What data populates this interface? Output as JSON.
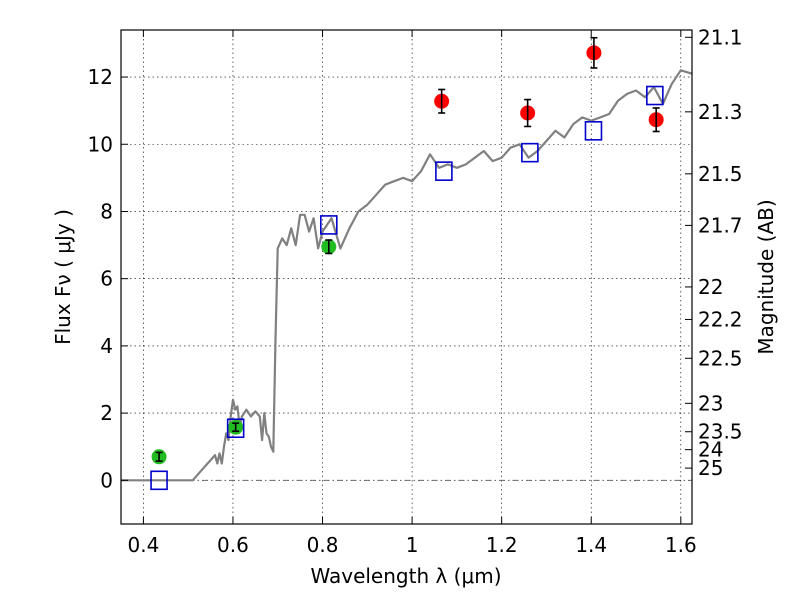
{
  "chart_data": {
    "type": "scatter",
    "xlabel": "Wavelength  λ (μm)",
    "ylabel": "Flux  Fν  ( μJy )",
    "y2label": "Magnitude (AB)",
    "xlim": [
      0.35,
      1.625
    ],
    "ylim": [
      -1.3,
      13.4
    ],
    "grid": true,
    "x_ticks": [
      "0.4",
      "0.6",
      "0.8",
      "1",
      "1.2",
      "1.4",
      "1.6"
    ],
    "y_ticks": [
      "0",
      "2",
      "4",
      "6",
      "8",
      "10",
      "12"
    ],
    "y2_ticks": [
      "21.1",
      "21.3",
      "21.5",
      "21.7",
      "22",
      "22.2",
      "22.5",
      "23",
      "23.5",
      "24",
      "25"
    ],
    "series": [
      {
        "marker": "circle",
        "color": "#22bb22",
        "points": [
          {
            "x": 0.435,
            "y": 0.7,
            "err": 0.13
          },
          {
            "x": 0.606,
            "y": 1.58,
            "err": 0.12
          },
          {
            "x": 0.814,
            "y": 6.95,
            "err": 0.2
          }
        ]
      },
      {
        "marker": "circle",
        "color": "#ff0000",
        "points": [
          {
            "x": 1.066,
            "y": 11.28,
            "err": 0.35
          },
          {
            "x": 1.258,
            "y": 10.93,
            "err": 0.4
          },
          {
            "x": 1.406,
            "y": 12.72,
            "err": 0.45
          },
          {
            "x": 1.545,
            "y": 10.73,
            "err": 0.35
          }
        ]
      },
      {
        "marker": "open-square",
        "color": "#0000cc",
        "points": [
          {
            "x": 0.435,
            "y": 0.0
          },
          {
            "x": 0.606,
            "y": 1.55
          },
          {
            "x": 0.814,
            "y": 7.6
          },
          {
            "x": 1.071,
            "y": 9.2
          },
          {
            "x": 1.263,
            "y": 9.75
          },
          {
            "x": 1.405,
            "y": 10.4
          },
          {
            "x": 1.542,
            "y": 11.45
          }
        ]
      },
      {
        "marker": "line",
        "color": "#808080",
        "x": [
          0.35,
          0.43,
          0.51,
          0.53,
          0.55,
          0.56,
          0.565,
          0.57,
          0.575,
          0.58,
          0.585,
          0.59,
          0.595,
          0.6,
          0.605,
          0.61,
          0.615,
          0.62,
          0.63,
          0.64,
          0.65,
          0.66,
          0.665,
          0.67,
          0.675,
          0.68,
          0.685,
          0.69,
          0.695,
          0.7,
          0.71,
          0.72,
          0.73,
          0.74,
          0.75,
          0.76,
          0.77,
          0.78,
          0.79,
          0.8,
          0.82,
          0.84,
          0.86,
          0.88,
          0.9,
          0.92,
          0.94,
          0.96,
          0.98,
          1.0,
          1.02,
          1.04,
          1.06,
          1.08,
          1.1,
          1.12,
          1.14,
          1.16,
          1.18,
          1.2,
          1.22,
          1.24,
          1.26,
          1.28,
          1.3,
          1.32,
          1.34,
          1.36,
          1.38,
          1.4,
          1.42,
          1.44,
          1.46,
          1.48,
          1.5,
          1.52,
          1.54,
          1.56,
          1.58,
          1.6,
          1.625
        ],
        "y": [
          0.0,
          0.0,
          0.0,
          0.3,
          0.6,
          0.75,
          0.5,
          0.8,
          0.5,
          1.0,
          1.4,
          1.2,
          1.9,
          2.4,
          2.1,
          2.2,
          1.6,
          1.9,
          2.1,
          1.9,
          2.05,
          1.9,
          1.2,
          2.0,
          1.4,
          1.3,
          1.0,
          0.85,
          4.2,
          6.9,
          7.2,
          7.0,
          7.5,
          7.0,
          7.9,
          7.9,
          7.4,
          7.8,
          6.9,
          7.4,
          7.8,
          6.9,
          7.5,
          8.0,
          8.2,
          8.5,
          8.8,
          8.9,
          9.0,
          8.9,
          9.2,
          9.7,
          9.3,
          9.4,
          9.3,
          9.4,
          9.6,
          9.8,
          9.5,
          9.6,
          9.9,
          10.0,
          9.6,
          9.8,
          10.1,
          10.4,
          10.2,
          10.6,
          10.8,
          10.7,
          10.8,
          10.9,
          11.3,
          11.5,
          11.6,
          11.4,
          11.7,
          11.2,
          11.8,
          12.2,
          12.1
        ]
      }
    ],
    "reference_line": {
      "y": 0,
      "style": "dash-dot"
    }
  }
}
